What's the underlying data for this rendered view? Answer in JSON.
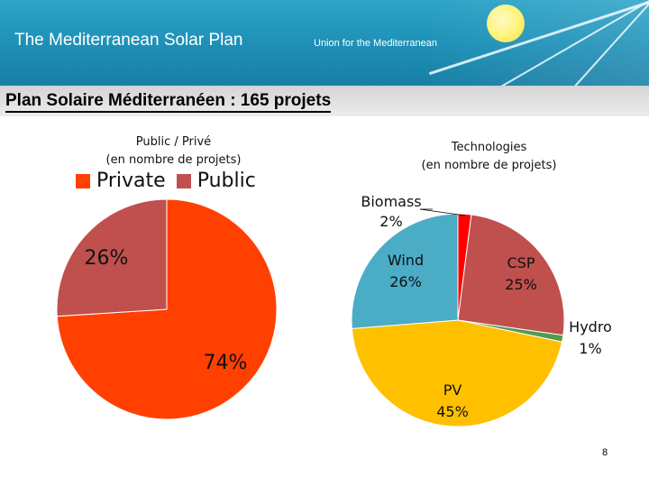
{
  "header": {
    "title": "The Mediterranean Solar Plan",
    "subtitle": "Union for the Mediterranean"
  },
  "slide_title": "Plan Solaire Méditerranéen : 165 projets",
  "page_number": "8",
  "colors": {
    "private": "#ff4000",
    "public": "#c0504d",
    "biomass": "#ff0000",
    "csp": "#c0504d",
    "hydro": "#4f9a4f",
    "pv": "#ffc000",
    "wind": "#4bacc6",
    "header": "#1d8fb6"
  },
  "chart_data": [
    {
      "type": "pie",
      "title_line1": "Public / Privé",
      "title_line2": "(en nombre de projets)",
      "legend": [
        "Private",
        "Public"
      ],
      "legend_placement": "top",
      "slices": [
        {
          "name": "Private",
          "value": 74,
          "label": "74%"
        },
        {
          "name": "Public",
          "value": 26,
          "label": "26%"
        }
      ]
    },
    {
      "type": "pie",
      "title_line1": "Technologies",
      "title_line2": "(en nombre de projets)",
      "slices": [
        {
          "name": "Biomass",
          "value": 2,
          "label": "2%"
        },
        {
          "name": "CSP",
          "value": 25,
          "label": "25%"
        },
        {
          "name": "Hydro",
          "value": 1,
          "label": "1%"
        },
        {
          "name": "PV",
          "value": 45,
          "label": "45%"
        },
        {
          "name": "Wind",
          "value": 26,
          "label": "26%"
        }
      ]
    }
  ]
}
